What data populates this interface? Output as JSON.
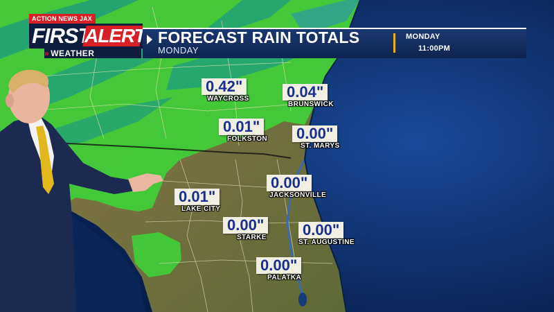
{
  "logo": {
    "station": "ACTION NEWS JAX",
    "first": "FIRST",
    "alert": "ALERT",
    "weather": "WEATHER",
    "weather_prefix": "»"
  },
  "header": {
    "title": "FORECAST RAIN TOTALS",
    "subtitle": "MONDAY",
    "day": "MONDAY",
    "time": "11:00PM"
  },
  "locations": [
    {
      "city": "WAYCROSS",
      "value": "0.42\""
    },
    {
      "city": "BRUNSWICK",
      "value": "0.04\""
    },
    {
      "city": "FOLKSTON",
      "value": "0.01\""
    },
    {
      "city": "ST. MARYS",
      "value": "0.00\""
    },
    {
      "city": "JACKSONVILLE",
      "value": "0.00\""
    },
    {
      "city": "LAKE CITY",
      "value": "0.01\""
    },
    {
      "city": "STARKE",
      "value": "0.00\""
    },
    {
      "city": "ST. AUGUSTINE",
      "value": "0.00\""
    },
    {
      "city": "PALATKA",
      "value": "0.00\""
    }
  ],
  "colors": {
    "land": "#7a7044",
    "ocean": "#0b2c66",
    "rain_light": "#3fcf3a",
    "rain_moderate": "#1f9f7a",
    "label_bg": "#f1eee2",
    "label_text": "#1a2f8c",
    "brand_red": "#d91f26",
    "header_bg": "#0e2450",
    "accent": "#e7b416"
  }
}
